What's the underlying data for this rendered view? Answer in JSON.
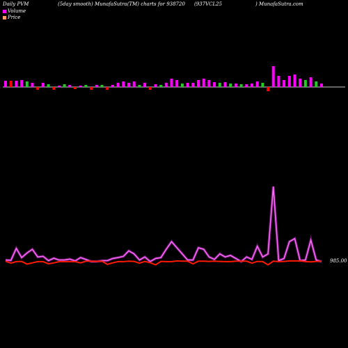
{
  "header": {
    "left": "Daily PVM",
    "mid": "(5day smooth) MunafaSutra(TM) charts for 938720",
    "right_a": "(937VCL25",
    "right_b": ") MunafaSutra.com"
  },
  "legend": [
    {
      "label": "Volume",
      "color": "#ff00ff"
    },
    {
      "label": "Price",
      "color": "#ff9966"
    }
  ],
  "colors": {
    "bar_up": "#ff00ff",
    "bar_down": "#ff0000",
    "bar_flat": "#22cc22",
    "volume_line": "#ff44ff",
    "price_line": "#ff1a00",
    "baseline": "#cccccc"
  },
  "chart_data": {
    "type": "line",
    "price_label": "985.00",
    "bars": {
      "baseline": 0,
      "values": [
        9,
        9,
        9,
        10,
        8,
        6,
        -4,
        6,
        4,
        -4,
        2,
        4,
        3,
        -3,
        2,
        3,
        -4,
        3,
        3,
        -4,
        3,
        6,
        8,
        6,
        8,
        3,
        6,
        -4,
        4,
        3,
        6,
        12,
        10,
        5,
        6,
        6,
        10,
        12,
        10,
        7,
        6,
        7,
        5,
        5,
        4,
        4,
        5,
        8,
        6,
        -6,
        30,
        16,
        10,
        16,
        18,
        12,
        10,
        14,
        8,
        5
      ],
      "colors": [
        "up",
        "down",
        "up",
        "up",
        "flat",
        "up",
        "down",
        "up",
        "flat",
        "down",
        "up",
        "flat",
        "up",
        "down",
        "up",
        "flat",
        "down",
        "up",
        "flat",
        "down",
        "up",
        "up",
        "up",
        "up",
        "up",
        "flat",
        "up",
        "down",
        "up",
        "flat",
        "up",
        "up",
        "up",
        "flat",
        "up",
        "up",
        "up",
        "up",
        "up",
        "up",
        "flat",
        "up",
        "flat",
        "up",
        "flat",
        "up",
        "up",
        "up",
        "flat",
        "down",
        "up",
        "up",
        "up",
        "up",
        "up",
        "up",
        "flat",
        "up",
        "flat",
        "up"
      ]
    },
    "volume": [
      10,
      9,
      48,
      18,
      33,
      45,
      20,
      22,
      8,
      16,
      10,
      10,
      13,
      7,
      18,
      12,
      5,
      5,
      8,
      8,
      15,
      18,
      22,
      40,
      30,
      10,
      20,
      5,
      15,
      18,
      45,
      70,
      50,
      30,
      10,
      10,
      50,
      45,
      20,
      12,
      30,
      20,
      25,
      15,
      5,
      20,
      12,
      55,
      20,
      30,
      250,
      8,
      15,
      70,
      80,
      8,
      10,
      75,
      10,
      5
    ],
    "price": [
      5,
      -3,
      3,
      4,
      -7,
      -2,
      3,
      3,
      -6,
      -2,
      3,
      3,
      3,
      3,
      -2,
      5,
      5,
      4,
      5,
      -8,
      -2,
      3,
      3,
      5,
      4,
      -3,
      4,
      -1,
      -10,
      4,
      3,
      3,
      6,
      5,
      5,
      -6,
      5,
      5,
      4,
      5,
      4,
      3,
      3,
      5,
      5,
      5,
      -3,
      4,
      3,
      -10,
      5,
      3,
      4,
      6,
      6,
      6,
      3,
      2,
      4,
      5
    ]
  }
}
